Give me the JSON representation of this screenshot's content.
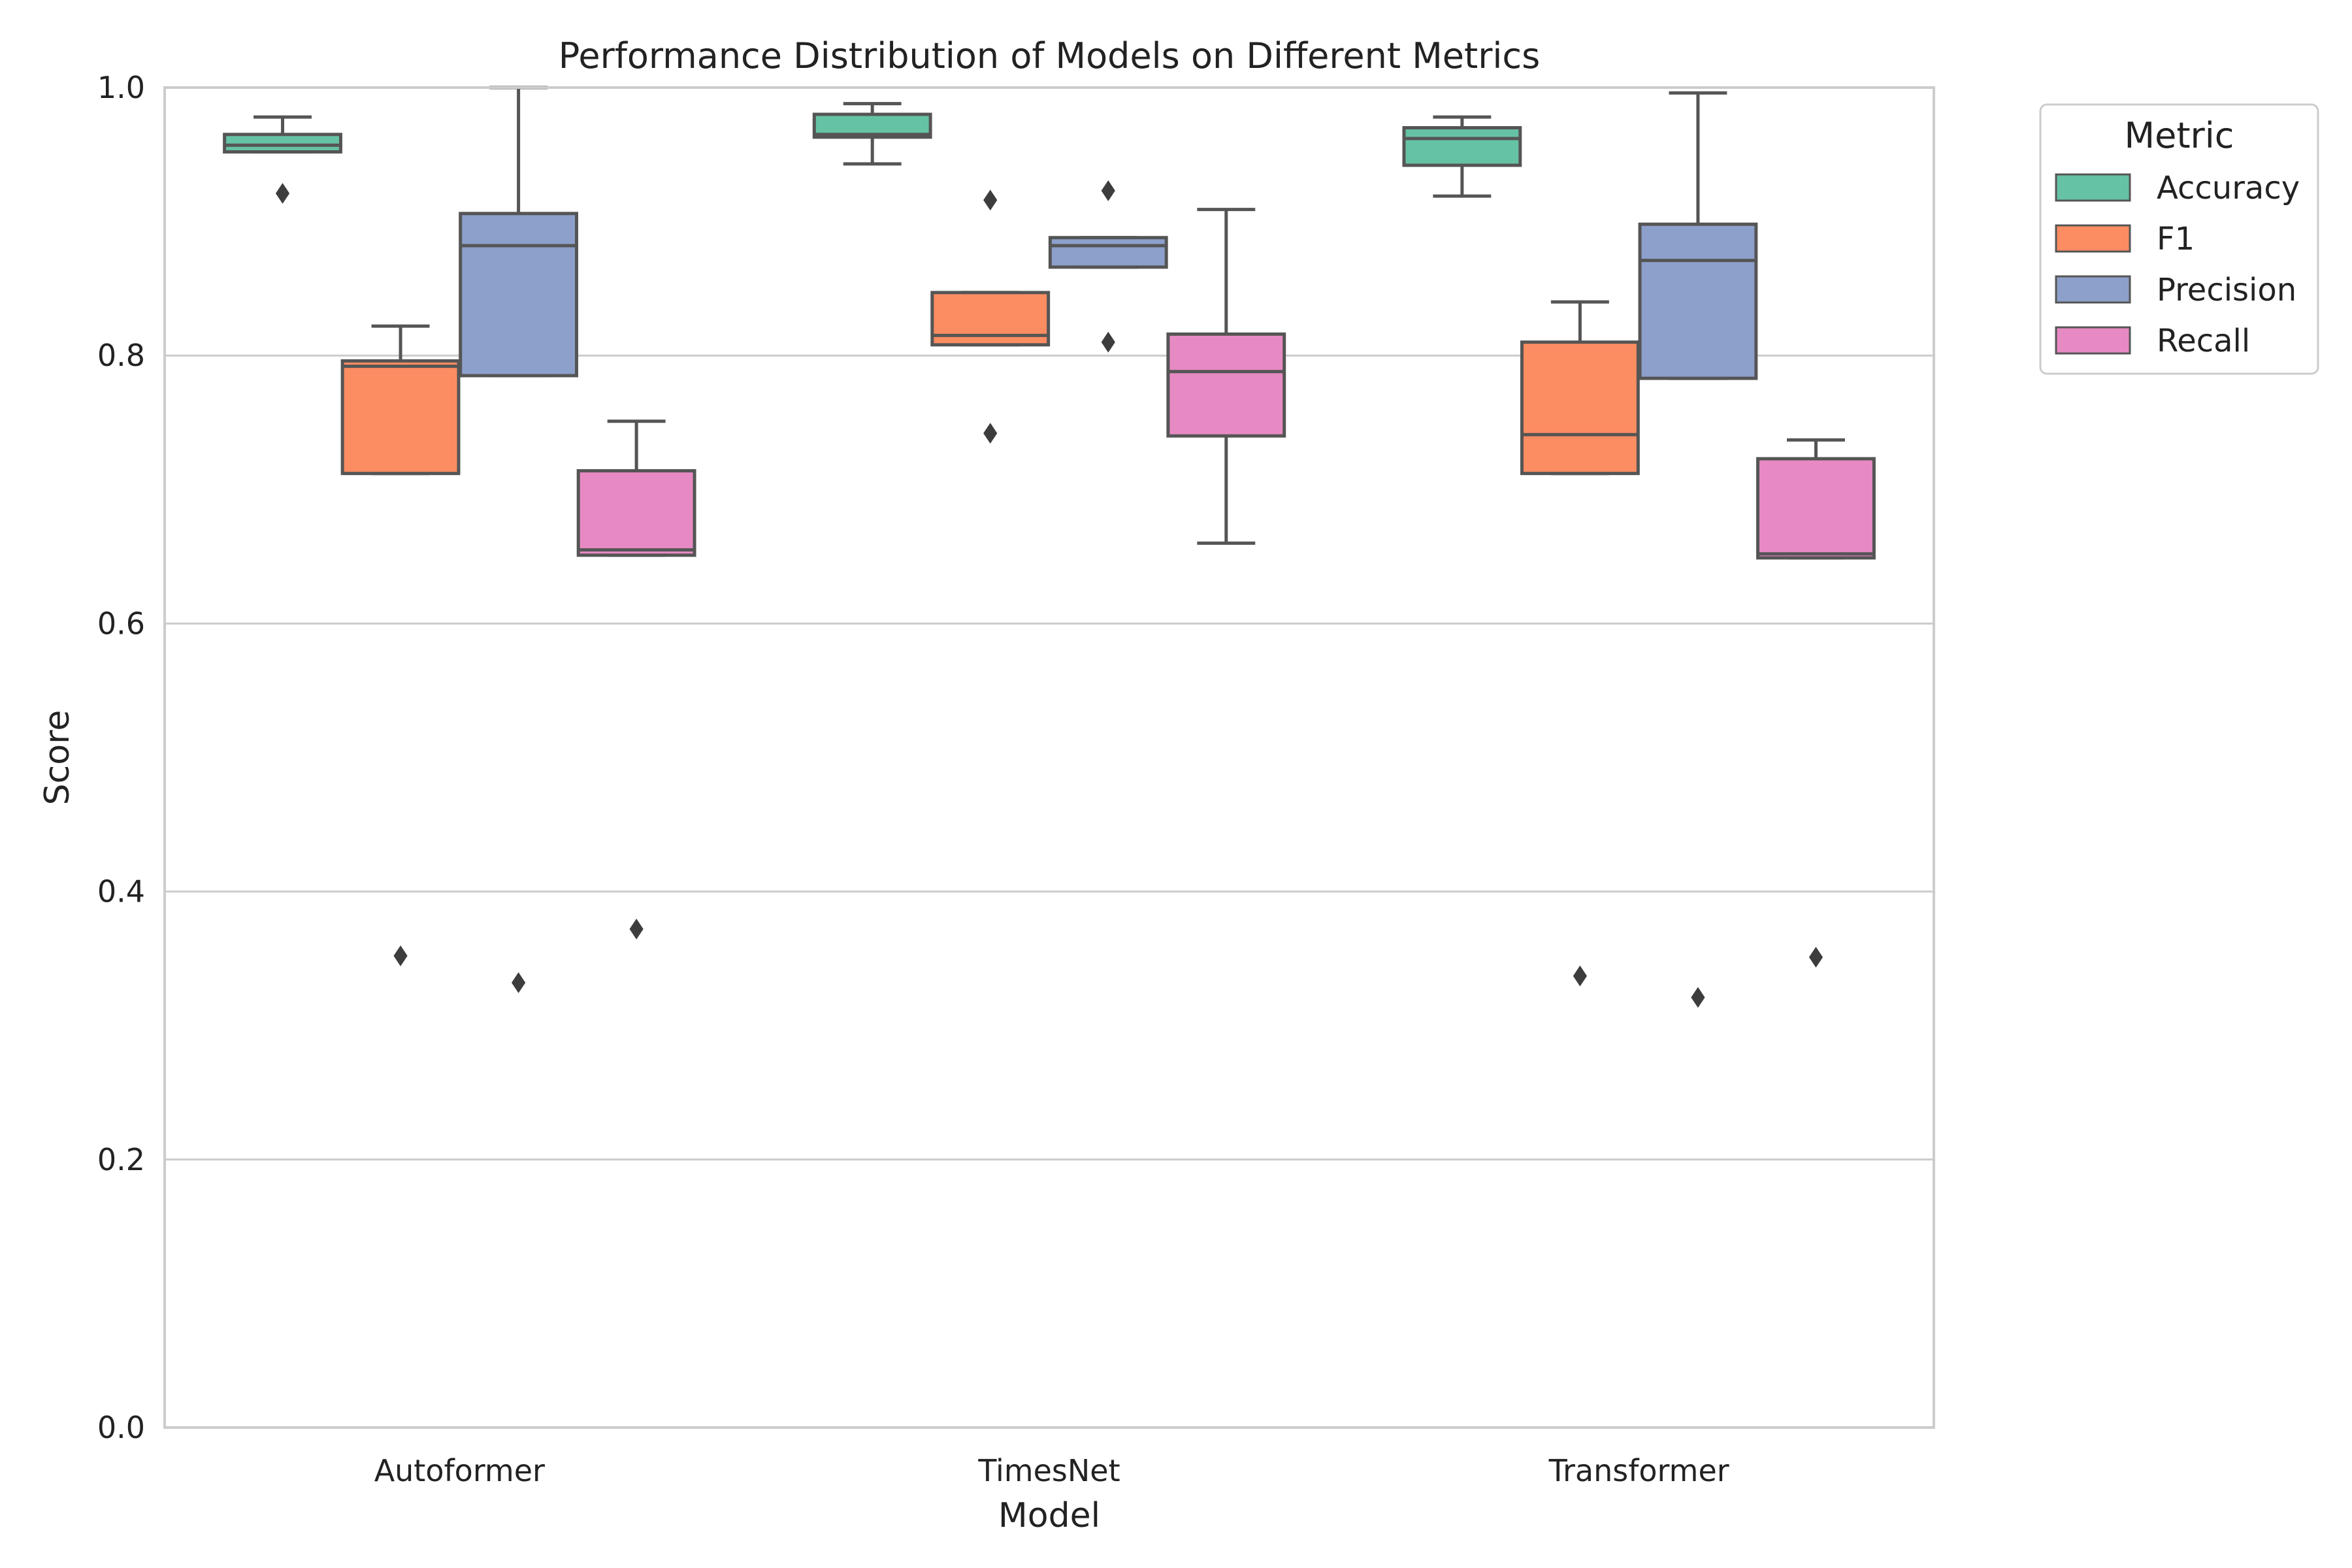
{
  "chart_data": {
    "type": "box",
    "title": "Performance Distribution of Models on Different Metrics",
    "xlabel": "Model",
    "ylabel": "Score",
    "ylim": [
      0.0,
      1.0
    ],
    "yticks": [
      "0.0",
      "0.2",
      "0.4",
      "0.6",
      "0.8",
      "1.0"
    ],
    "grid": "horizontal",
    "legend_position": "outside-top-right",
    "legend_title": "Metric",
    "categories": [
      "Autoformer",
      "TimesNet",
      "Transformer"
    ],
    "series": [
      {
        "name": "Accuracy",
        "color": "#66c2a5",
        "boxes": [
          {
            "whisker_low": 0.952,
            "q1": 0.952,
            "median": 0.957,
            "q3": 0.965,
            "whisker_high": 0.978,
            "outliers": [
              0.921
            ]
          },
          {
            "whisker_low": 0.943,
            "q1": 0.963,
            "median": 0.965,
            "q3": 0.98,
            "whisker_high": 0.988,
            "outliers": []
          },
          {
            "whisker_low": 0.919,
            "q1": 0.942,
            "median": 0.962,
            "q3": 0.97,
            "whisker_high": 0.978,
            "outliers": []
          }
        ]
      },
      {
        "name": "F1",
        "color": "#fc8d62",
        "boxes": [
          {
            "whisker_low": 0.712,
            "q1": 0.712,
            "median": 0.792,
            "q3": 0.796,
            "whisker_high": 0.822,
            "outliers": [
              0.352
            ]
          },
          {
            "whisker_low": 0.808,
            "q1": 0.808,
            "median": 0.815,
            "q3": 0.847,
            "whisker_high": 0.847,
            "outliers": [
              0.916,
              0.742
            ]
          },
          {
            "whisker_low": 0.712,
            "q1": 0.712,
            "median": 0.741,
            "q3": 0.81,
            "whisker_high": 0.84,
            "outliers": [
              0.337
            ]
          }
        ]
      },
      {
        "name": "Precision",
        "color": "#8da0cb",
        "boxes": [
          {
            "whisker_low": 0.785,
            "q1": 0.785,
            "median": 0.882,
            "q3": 0.906,
            "whisker_high": 1.0,
            "outliers": [
              0.332
            ]
          },
          {
            "whisker_low": 0.866,
            "q1": 0.866,
            "median": 0.882,
            "q3": 0.888,
            "whisker_high": 0.888,
            "outliers": [
              0.923,
              0.81
            ]
          },
          {
            "whisker_low": 0.783,
            "q1": 0.783,
            "median": 0.871,
            "q3": 0.898,
            "whisker_high": 0.996,
            "outliers": [
              0.321
            ]
          }
        ]
      },
      {
        "name": "Recall",
        "color": "#e78ac3",
        "boxes": [
          {
            "whisker_low": 0.651,
            "q1": 0.651,
            "median": 0.655,
            "q3": 0.714,
            "whisker_high": 0.751,
            "outliers": [
              0.372
            ]
          },
          {
            "whisker_low": 0.66,
            "q1": 0.74,
            "median": 0.788,
            "q3": 0.816,
            "whisker_high": 0.909,
            "outliers": []
          },
          {
            "whisker_low": 0.649,
            "q1": 0.649,
            "median": 0.652,
            "q3": 0.723,
            "whisker_high": 0.737,
            "outliers": [
              0.351
            ]
          }
        ]
      }
    ]
  }
}
